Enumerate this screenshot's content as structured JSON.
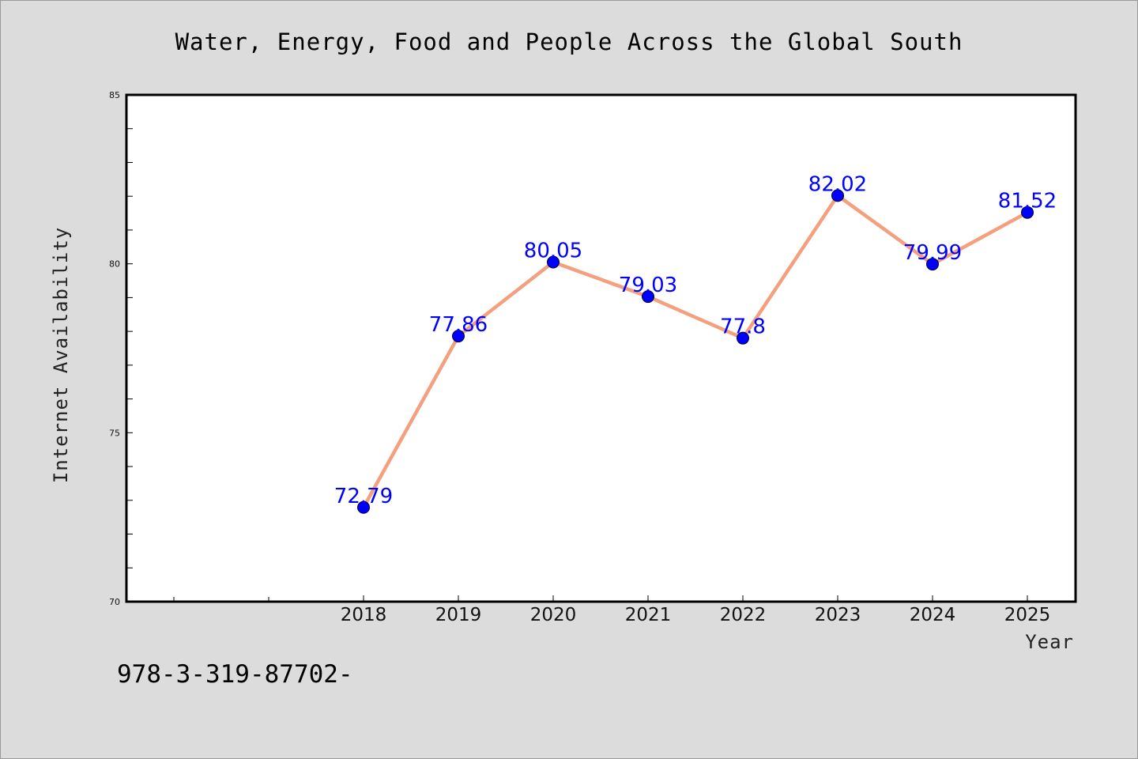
{
  "chart_data": {
    "type": "line",
    "title": "Water, Energy, Food and People Across the Global South",
    "xlabel": "Year",
    "ylabel": "Internet Availability",
    "categories": [
      "2018",
      "2019",
      "2020",
      "2021",
      "2022",
      "2023",
      "2024",
      "2025"
    ],
    "values": [
      72.79,
      77.86,
      80.05,
      79.03,
      77.8,
      82.02,
      79.99,
      81.52
    ],
    "data_labels": [
      "72.79",
      "77.86",
      "80.05",
      "79.03",
      "77.8",
      "82.02",
      "79.99",
      "81.52"
    ],
    "ylim": [
      70,
      85
    ],
    "yticks": [
      "70",
      "75",
      "80",
      "85"
    ],
    "grid": false,
    "legend": "none",
    "line_color": "#f4a07e",
    "marker_color": "#0000ff",
    "label_color": "#0000ff",
    "background_color": "#dcdcdc"
  },
  "footer": {
    "code": "978-3-319-87702-"
  }
}
